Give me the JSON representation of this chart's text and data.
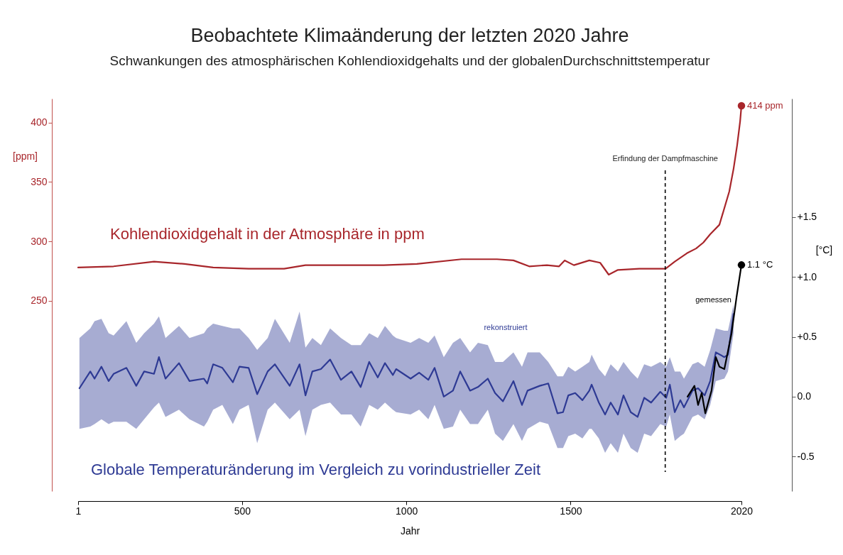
{
  "chart_data": {
    "type": "line",
    "title": "Beobachtete Klimaänderung der letzten 2020 Jahre",
    "subtitle": "Schwankungen des atmosphärischen Kohlendioxidgehalts und der globalenDurchschnittstemperatur",
    "xlabel": "Jahr",
    "ylabel": "[ppm]",
    "y2label": "[°C]",
    "xlim": [
      1,
      2020
    ],
    "xticks": [
      1,
      500,
      1000,
      1500,
      2020
    ],
    "ylim": [
      90,
      420
    ],
    "yticks": [
      250,
      300,
      350,
      400
    ],
    "y2lim": [
      -0.79,
      2.49
    ],
    "y2ticks": [
      {
        "value": -0.5,
        "label": "-0.5"
      },
      {
        "value": 0,
        "label": "0.0"
      },
      {
        "value": 0.5,
        "label": "+0.5"
      },
      {
        "value": 1.0,
        "label": "+1.0"
      },
      {
        "value": 1.5,
        "label": "+1.5"
      }
    ],
    "annotations": [
      "Globale Temperaturänderung im Vergleich zu vorindustrieller Zeit"
    ],
    "ref_lines": [
      {
        "axis": "x",
        "value": 1788,
        "label": "Erfindung der Dampfmaschine",
        "color": "#000000",
        "line_style": "dashed"
      }
    ],
    "series": [
      {
        "name": "Kohlendioxidgehalt in der Atmosphäre in ppm",
        "axis": "y",
        "line_style": "solid",
        "color": "#a8262b",
        "x": [
          1,
          109,
          232,
          325,
          412,
          520,
          628,
          693,
          801,
          931,
          1032,
          1168,
          1276,
          1326,
          1374,
          1428,
          1465,
          1482,
          1510,
          1557,
          1590,
          1616,
          1644,
          1709,
          1789,
          1817,
          1854,
          1882,
          1904,
          1925,
          1953,
          1983,
          1996,
          2007,
          2016,
          2020
        ],
        "values": [
          278,
          279,
          283,
          281,
          278,
          277,
          277,
          280,
          280,
          280,
          281,
          285,
          285,
          284,
          279,
          280,
          279,
          284,
          280,
          284,
          282,
          272,
          276,
          277,
          277,
          283,
          290,
          294,
          299,
          306,
          314,
          342,
          361,
          381,
          401,
          414
        ]
      },
      {
        "name": "rekonstruiert",
        "axis": "y2",
        "color": "#2e3a94",
        "x": [
          5,
          38,
          51,
          72,
          94,
          109,
          148,
          178,
          202,
          232,
          247,
          267,
          308,
          340,
          384,
          394,
          412,
          440,
          472,
          492,
          520,
          546,
          578,
          600,
          645,
          675,
          693,
          714,
          740,
          768,
          801,
          833,
          861,
          887,
          913,
          935,
          959,
          969,
          1013,
          1039,
          1067,
          1086,
          1114,
          1142,
          1164,
          1194,
          1218,
          1248,
          1270,
          1294,
          1326,
          1352,
          1369,
          1406,
          1432,
          1460,
          1477,
          1493,
          1514,
          1536,
          1557,
          1564,
          1586,
          1605,
          1622,
          1644,
          1661,
          1683,
          1704,
          1724,
          1745,
          1773,
          1791,
          1802,
          1817,
          1834,
          1845,
          1871,
          1888,
          1908,
          1925,
          1942,
          1968,
          1979,
          1996
        ],
        "values": [
          0.07,
          0.21,
          0.15,
          0.25,
          0.13,
          0.19,
          0.24,
          0.09,
          0.21,
          0.19,
          0.33,
          0.15,
          0.28,
          0.13,
          0.15,
          0.11,
          0.27,
          0.24,
          0.12,
          0.25,
          0.24,
          0.02,
          0.21,
          0.27,
          0.09,
          0.27,
          0.01,
          0.21,
          0.23,
          0.31,
          0.14,
          0.21,
          0.08,
          0.29,
          0.16,
          0.28,
          0.18,
          0.23,
          0.15,
          0.2,
          0.14,
          0.24,
          0.0,
          0.05,
          0.21,
          0.05,
          0.08,
          0.15,
          0.03,
          -0.04,
          0.13,
          -0.07,
          0.05,
          0.09,
          0.11,
          -0.14,
          -0.13,
          0.01,
          0.03,
          -0.03,
          0.05,
          0.1,
          -0.05,
          -0.15,
          -0.05,
          -0.15,
          0.01,
          -0.13,
          -0.17,
          -0.01,
          -0.05,
          0.04,
          -0.01,
          0.1,
          -0.13,
          -0.03,
          -0.09,
          0.05,
          0.07,
          0.01,
          0.13,
          0.37,
          0.33,
          0.35,
          0.69
        ],
        "upper": [
          0.49,
          0.57,
          0.63,
          0.65,
          0.53,
          0.51,
          0.63,
          0.45,
          0.53,
          0.61,
          0.67,
          0.49,
          0.59,
          0.49,
          0.53,
          0.57,
          0.61,
          0.59,
          0.57,
          0.57,
          0.49,
          0.39,
          0.49,
          0.65,
          0.45,
          0.71,
          0.41,
          0.49,
          0.43,
          0.57,
          0.49,
          0.43,
          0.43,
          0.53,
          0.49,
          0.59,
          0.51,
          0.49,
          0.45,
          0.49,
          0.45,
          0.51,
          0.33,
          0.45,
          0.49,
          0.37,
          0.45,
          0.43,
          0.29,
          0.29,
          0.37,
          0.25,
          0.37,
          0.37,
          0.29,
          0.17,
          0.17,
          0.25,
          0.21,
          0.25,
          0.29,
          0.35,
          0.23,
          0.17,
          0.27,
          0.21,
          0.29,
          0.21,
          0.15,
          0.27,
          0.25,
          0.29,
          0.25,
          0.33,
          0.21,
          0.21,
          0.15,
          0.27,
          0.29,
          0.25,
          0.39,
          0.57,
          0.55,
          0.55,
          0.77
        ],
        "lower": [
          -0.27,
          -0.25,
          -0.23,
          -0.19,
          -0.23,
          -0.21,
          -0.21,
          -0.27,
          -0.19,
          -0.09,
          -0.05,
          -0.17,
          -0.11,
          -0.19,
          -0.25,
          -0.21,
          -0.11,
          -0.07,
          -0.23,
          -0.11,
          -0.07,
          -0.39,
          -0.11,
          -0.05,
          -0.19,
          -0.11,
          -0.33,
          -0.11,
          -0.07,
          -0.05,
          -0.15,
          -0.15,
          -0.25,
          -0.07,
          -0.11,
          -0.05,
          -0.11,
          -0.13,
          -0.15,
          -0.11,
          -0.19,
          -0.07,
          -0.27,
          -0.25,
          -0.11,
          -0.23,
          -0.23,
          -0.11,
          -0.31,
          -0.37,
          -0.23,
          -0.37,
          -0.27,
          -0.21,
          -0.23,
          -0.43,
          -0.43,
          -0.33,
          -0.31,
          -0.35,
          -0.27,
          -0.27,
          -0.35,
          -0.47,
          -0.39,
          -0.47,
          -0.31,
          -0.43,
          -0.47,
          -0.31,
          -0.33,
          -0.23,
          -0.25,
          -0.15,
          -0.37,
          -0.33,
          -0.31,
          -0.17,
          -0.15,
          -0.19,
          -0.07,
          0.13,
          0.15,
          0.21,
          0.53
        ],
        "line_style": "solid"
      },
      {
        "name": "gemessen",
        "axis": "y2",
        "line_style": "solid",
        "color": "#000000",
        "x": [
          1856,
          1877,
          1888,
          1899,
          1910,
          1929,
          1942,
          1953,
          1968,
          1990,
          2005,
          2020
        ],
        "values": [
          0.0,
          0.09,
          -0.07,
          0.03,
          -0.14,
          0.05,
          0.33,
          0.25,
          0.23,
          0.53,
          0.83,
          1.1
        ]
      },
      {
        "type": "scatter",
        "axis": "y",
        "color": "#a8262b",
        "x": [
          2020
        ],
        "values": [
          414
        ],
        "value_labels": [
          "414 ppm"
        ]
      },
      {
        "type": "scatter",
        "axis": "y2",
        "color": "#000000",
        "x": [
          2020
        ],
        "values": [
          1.1
        ],
        "value_labels": [
          "1.1 °C"
        ]
      }
    ]
  }
}
